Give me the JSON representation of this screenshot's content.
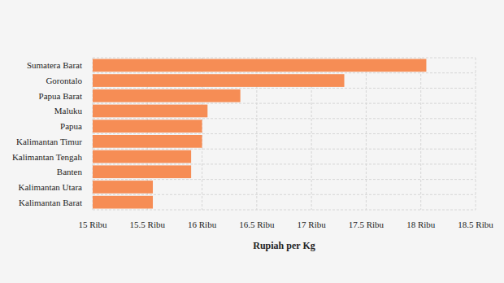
{
  "chart_data": {
    "type": "bar",
    "orientation": "horizontal",
    "categories": [
      "Sumatera Barat",
      "Gorontalo",
      "Papua Barat",
      "Maluku",
      "Papua",
      "Kalimantan Timur",
      "Kalimantan Tengah",
      "Banten",
      "Kalimantan Utara",
      "Kalimantan Barat"
    ],
    "values": [
      18050,
      17300,
      16350,
      16050,
      16000,
      16000,
      15900,
      15900,
      15550,
      15550
    ],
    "color": "#f68d55",
    "x_label": "Rupiah per Kg",
    "xlim": [
      15000,
      18500
    ],
    "xticks": [
      {
        "value": 15000,
        "label": "15 Ribu"
      },
      {
        "value": 15500,
        "label": "15.5 Ribu"
      },
      {
        "value": 16000,
        "label": "16 Ribu"
      },
      {
        "value": 16500,
        "label": "16.5 Ribu"
      },
      {
        "value": 17000,
        "label": "17 Ribu"
      },
      {
        "value": 17500,
        "label": "17.5 Ribu"
      },
      {
        "value": 18000,
        "label": "18 Ribu"
      },
      {
        "value": 18500,
        "label": "18.5 Ribu"
      }
    ],
    "grid": true
  }
}
